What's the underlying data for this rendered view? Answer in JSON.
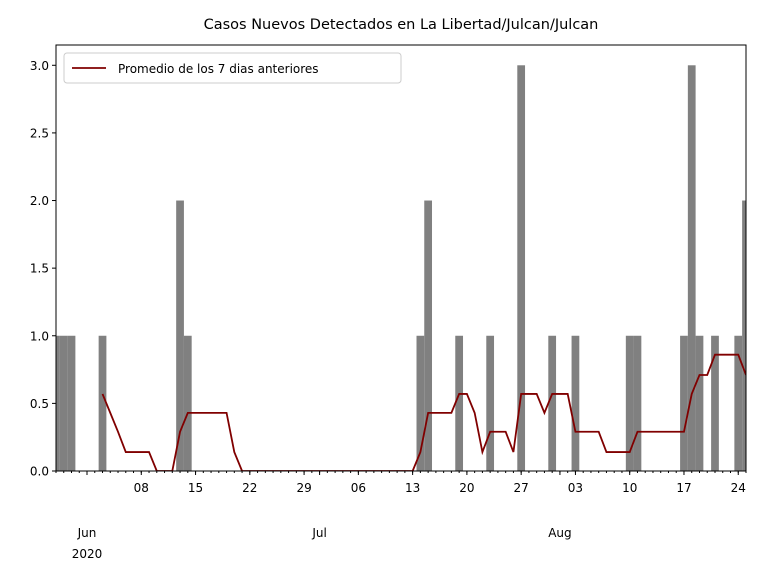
{
  "chart_data": {
    "type": "bar",
    "title": "Casos Nuevos Detectados en La Libertad/Julcan/Julcan",
    "x": [
      "2020-05-28",
      "2020-05-29",
      "2020-05-30",
      "2020-05-31",
      "2020-06-01",
      "2020-06-02",
      "2020-06-03",
      "2020-06-04",
      "2020-06-05",
      "2020-06-06",
      "2020-06-07",
      "2020-06-08",
      "2020-06-09",
      "2020-06-10",
      "2020-06-11",
      "2020-06-12",
      "2020-06-13",
      "2020-06-14",
      "2020-06-15",
      "2020-06-16",
      "2020-06-17",
      "2020-06-18",
      "2020-06-19",
      "2020-06-20",
      "2020-06-21",
      "2020-06-22",
      "2020-06-23",
      "2020-06-24",
      "2020-06-25",
      "2020-06-26",
      "2020-06-27",
      "2020-06-28",
      "2020-06-29",
      "2020-06-30",
      "2020-07-01",
      "2020-07-02",
      "2020-07-03",
      "2020-07-04",
      "2020-07-05",
      "2020-07-06",
      "2020-07-07",
      "2020-07-08",
      "2020-07-09",
      "2020-07-10",
      "2020-07-11",
      "2020-07-12",
      "2020-07-13",
      "2020-07-14",
      "2020-07-15",
      "2020-07-16",
      "2020-07-17",
      "2020-07-18",
      "2020-07-19",
      "2020-07-20",
      "2020-07-21",
      "2020-07-22",
      "2020-07-23",
      "2020-07-24",
      "2020-07-25",
      "2020-07-26",
      "2020-07-27",
      "2020-07-28",
      "2020-07-29",
      "2020-07-30",
      "2020-07-31",
      "2020-08-01",
      "2020-08-02",
      "2020-08-03",
      "2020-08-04",
      "2020-08-05",
      "2020-08-06",
      "2020-08-07",
      "2020-08-08",
      "2020-08-09",
      "2020-08-10",
      "2020-08-11",
      "2020-08-12",
      "2020-08-13",
      "2020-08-14",
      "2020-08-15",
      "2020-08-16",
      "2020-08-17",
      "2020-08-18",
      "2020-08-19",
      "2020-08-20",
      "2020-08-21",
      "2020-08-22",
      "2020-08-23",
      "2020-08-24",
      "2020-08-25"
    ],
    "series": [
      {
        "type": "bar",
        "color": "#808080",
        "values": [
          1,
          1,
          1,
          0,
          0,
          0,
          1,
          0,
          0,
          0,
          0,
          0,
          0,
          0,
          0,
          0,
          2,
          1,
          0,
          0,
          0,
          0,
          0,
          0,
          0,
          0,
          0,
          0,
          0,
          0,
          0,
          0,
          0,
          0,
          0,
          0,
          0,
          0,
          0,
          0,
          0,
          0,
          0,
          0,
          0,
          0,
          0,
          1,
          2,
          0,
          0,
          0,
          1,
          0,
          0,
          0,
          1,
          0,
          0,
          0,
          3,
          0,
          0,
          0,
          1,
          0,
          0,
          1,
          0,
          0,
          0,
          0,
          0,
          0,
          1,
          1,
          0,
          0,
          0,
          0,
          0,
          1,
          3,
          1,
          0,
          1,
          0,
          0,
          1,
          2
        ]
      },
      {
        "type": "line",
        "name": "Promedio de los 7 dias anteriores",
        "color": "#800000",
        "values": [
          null,
          null,
          null,
          null,
          null,
          null,
          0.57,
          0.43,
          0.29,
          0.14,
          0.14,
          0.14,
          0.14,
          0,
          0,
          0,
          0.29,
          0.43,
          0.43,
          0.43,
          0.43,
          0.43,
          0.43,
          0.14,
          0,
          0,
          0,
          0,
          0,
          0,
          0,
          0,
          0,
          0,
          0,
          0,
          0,
          0,
          0,
          0,
          0,
          0,
          0,
          0,
          0,
          0,
          0,
          0.14,
          0.43,
          0.43,
          0.43,
          0.43,
          0.57,
          0.57,
          0.43,
          0.14,
          0.29,
          0.29,
          0.29,
          0.14,
          0.57,
          0.57,
          0.57,
          0.43,
          0.57,
          0.57,
          0.57,
          0.29,
          0.29,
          0.29,
          0.29,
          0.14,
          0.14,
          0.14,
          0.14,
          0.29,
          0.29,
          0.29,
          0.29,
          0.29,
          0.29,
          0.29,
          0.57,
          0.71,
          0.71,
          0.86,
          0.86,
          0.86,
          0.86,
          0.71
        ]
      }
    ],
    "xlim": [
      "2020-05-28",
      "2020-08-25"
    ],
    "xticks": [
      {
        "value": "2020-06-08",
        "label": "08"
      },
      {
        "value": "2020-06-15",
        "label": "15"
      },
      {
        "value": "2020-06-22",
        "label": "22"
      },
      {
        "value": "2020-06-29",
        "label": "29"
      },
      {
        "value": "2020-07-06",
        "label": "06"
      },
      {
        "value": "2020-07-13",
        "label": "13"
      },
      {
        "value": "2020-07-20",
        "label": "20"
      },
      {
        "value": "2020-07-27",
        "label": "27"
      },
      {
        "value": "2020-08-03",
        "label": "03"
      },
      {
        "value": "2020-08-10",
        "label": "10"
      },
      {
        "value": "2020-08-17",
        "label": "17"
      },
      {
        "value": "2020-08-24",
        "label": "24"
      }
    ],
    "xmonths": [
      {
        "value": "2020-06-01",
        "label": "Jun",
        "year": "2020"
      },
      {
        "value": "2020-07-01",
        "label": "Jul"
      },
      {
        "value": "2020-08-01",
        "label": "Aug"
      }
    ],
    "ylim": [
      0,
      3.15
    ],
    "yticks": [
      {
        "value": 0,
        "label": "0.0"
      },
      {
        "value": 0.5,
        "label": "0.5"
      },
      {
        "value": 1,
        "label": "1.0"
      },
      {
        "value": 1.5,
        "label": "1.5"
      },
      {
        "value": 2,
        "label": "2.0"
      },
      {
        "value": 2.5,
        "label": "2.5"
      },
      {
        "value": 3,
        "label": "3.0"
      }
    ],
    "legend": "upper left"
  }
}
